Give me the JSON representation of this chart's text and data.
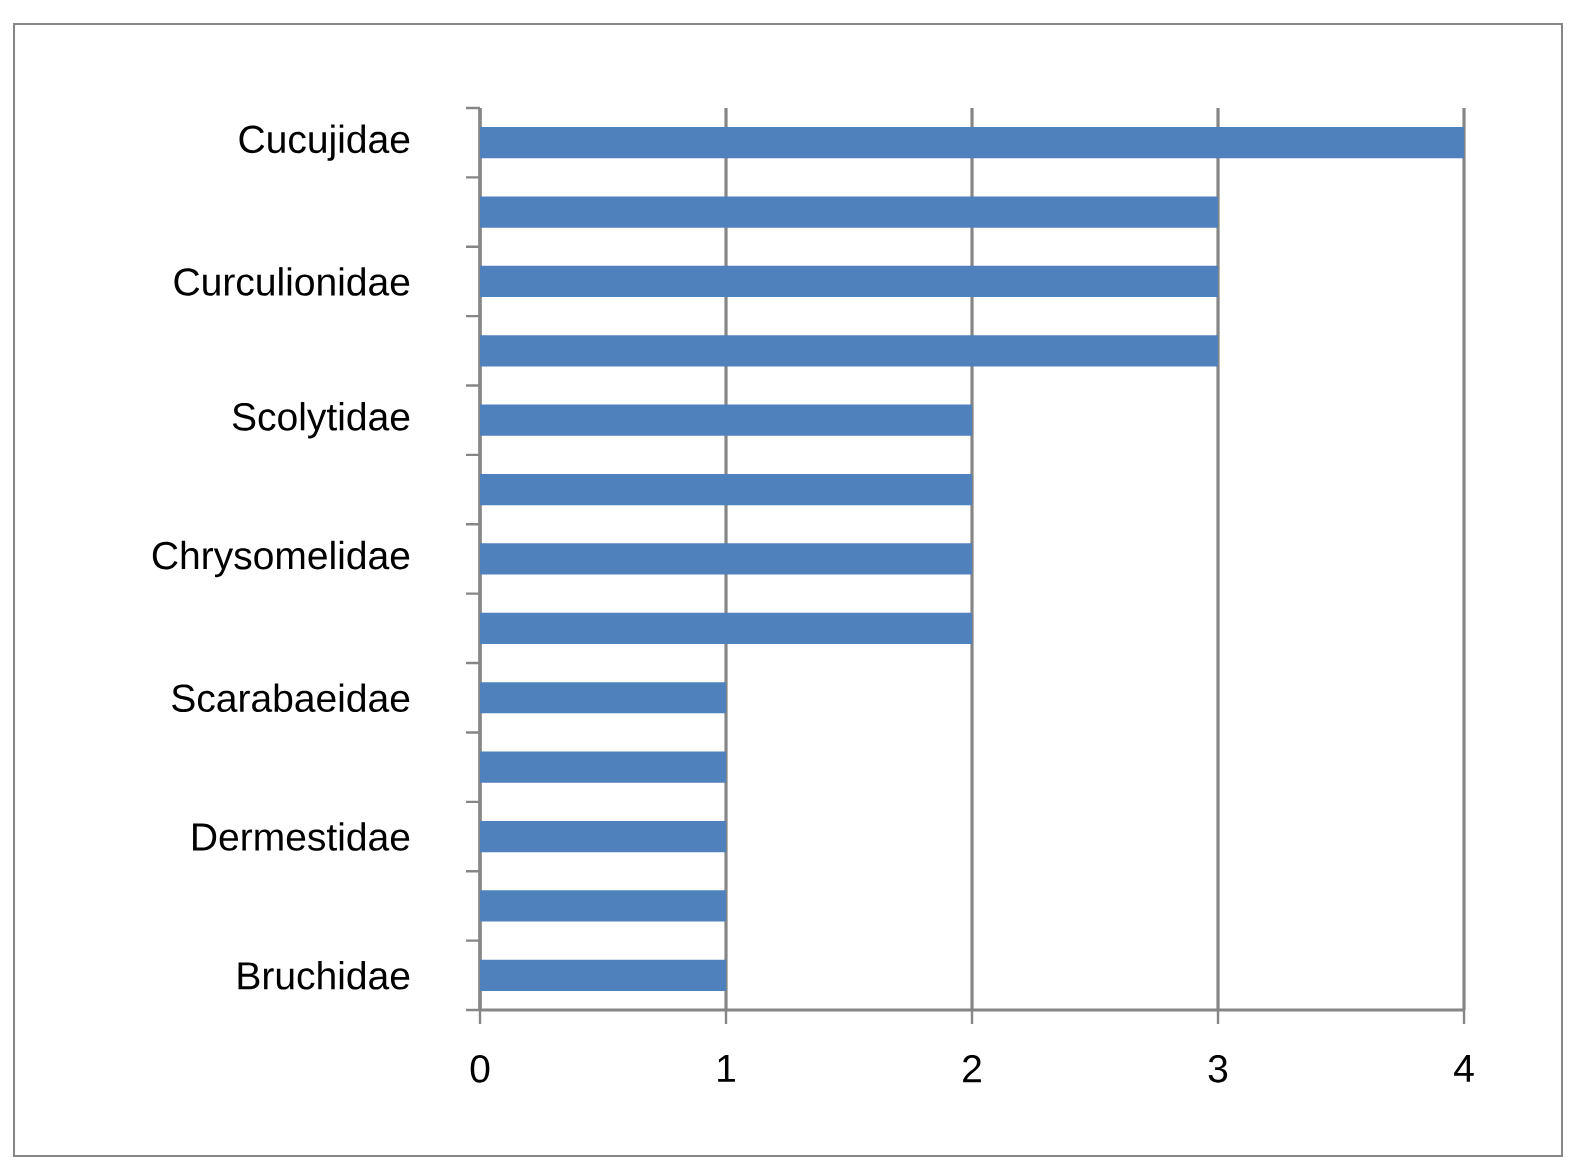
{
  "chart_data": {
    "type": "bar",
    "orientation": "horizontal",
    "categories": [
      "Cucujidae",
      null,
      "Curculionidae",
      null,
      "Scolytidae",
      null,
      "Chrysomelidae",
      null,
      "Scarabaeidae",
      null,
      "Dermestidae",
      null,
      "Bruchidae"
    ],
    "values": [
      4,
      3,
      3,
      3,
      2,
      2,
      2,
      2,
      1,
      1,
      1,
      1,
      1
    ],
    "color": "#4f81bd",
    "xlim": [
      0,
      4
    ],
    "xticks": [
      0,
      1,
      2,
      3,
      4
    ],
    "grid": "x"
  }
}
